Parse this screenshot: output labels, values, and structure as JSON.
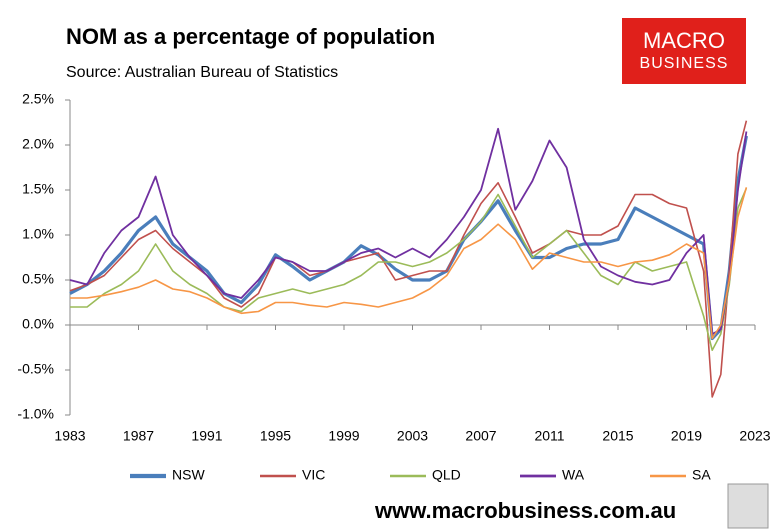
{
  "chart_data": {
    "type": "line",
    "title": "NOM as a percentage of population",
    "subtitle": "Source: Australian Bureau of Statistics",
    "logo": [
      "MACRO",
      "BUSINESS"
    ],
    "footer": "www.macrobusiness.com.au",
    "x": [
      1983,
      1984,
      1985,
      1986,
      1987,
      1988,
      1989,
      1990,
      1991,
      1992,
      1993,
      1994,
      1995,
      1996,
      1997,
      1998,
      1999,
      2000,
      2001,
      2002,
      2003,
      2004,
      2005,
      2006,
      2007,
      2008,
      2009,
      2010,
      2011,
      2012,
      2013,
      2014,
      2015,
      2016,
      2017,
      2018,
      2019,
      2020,
      2020.5,
      2021,
      2021.5,
      2022,
      2022.5
    ],
    "series": [
      {
        "name": "NSW",
        "color": "#4a7ebb",
        "width": 3.2,
        "values": [
          0.35,
          0.45,
          0.6,
          0.8,
          1.05,
          1.2,
          0.9,
          0.75,
          0.6,
          0.35,
          0.25,
          0.45,
          0.78,
          0.65,
          0.5,
          0.6,
          0.7,
          0.88,
          0.78,
          0.62,
          0.5,
          0.5,
          0.6,
          0.95,
          1.15,
          1.38,
          1.05,
          0.75,
          0.75,
          0.85,
          0.9,
          0.9,
          0.95,
          1.3,
          1.2,
          1.1,
          1.0,
          0.9,
          -0.15,
          -0.05,
          0.6,
          1.6,
          2.1
        ]
      },
      {
        "name": "VIC",
        "color": "#c0504d",
        "width": 1.6,
        "values": [
          0.38,
          0.45,
          0.55,
          0.75,
          0.95,
          1.05,
          0.85,
          0.7,
          0.55,
          0.3,
          0.2,
          0.35,
          0.75,
          0.7,
          0.55,
          0.6,
          0.7,
          0.75,
          0.8,
          0.5,
          0.55,
          0.6,
          0.6,
          1.0,
          1.35,
          1.58,
          1.2,
          0.8,
          0.9,
          1.05,
          1.0,
          1.0,
          1.1,
          1.45,
          1.45,
          1.35,
          1.3,
          0.6,
          -0.8,
          -0.55,
          0.6,
          1.9,
          2.27
        ]
      },
      {
        "name": "QLD",
        "color": "#9bbb59",
        "width": 1.6,
        "values": [
          0.2,
          0.2,
          0.35,
          0.45,
          0.6,
          0.9,
          0.6,
          0.45,
          0.35,
          0.2,
          0.15,
          0.3,
          0.35,
          0.4,
          0.35,
          0.4,
          0.45,
          0.55,
          0.7,
          0.7,
          0.65,
          0.7,
          0.8,
          0.95,
          1.15,
          1.45,
          1.1,
          0.75,
          0.9,
          1.05,
          0.8,
          0.55,
          0.45,
          0.7,
          0.6,
          0.65,
          0.7,
          0.1,
          -0.28,
          -0.1,
          0.45,
          1.3,
          1.52
        ]
      },
      {
        "name": "WA",
        "color": "#7030a0",
        "width": 1.8,
        "values": [
          0.5,
          0.45,
          0.8,
          1.05,
          1.2,
          1.65,
          1.0,
          0.75,
          0.55,
          0.35,
          0.3,
          0.5,
          0.75,
          0.7,
          0.6,
          0.6,
          0.7,
          0.8,
          0.85,
          0.75,
          0.85,
          0.75,
          0.95,
          1.2,
          1.5,
          2.18,
          1.28,
          1.6,
          2.05,
          1.75,
          0.95,
          0.65,
          0.55,
          0.48,
          0.45,
          0.5,
          0.8,
          1.0,
          -0.1,
          -0.05,
          0.5,
          1.5,
          2.15
        ]
      },
      {
        "name": "SA",
        "color": "#f79646",
        "width": 1.6,
        "values": [
          0.3,
          0.3,
          0.33,
          0.37,
          0.42,
          0.5,
          0.4,
          0.37,
          0.3,
          0.2,
          0.13,
          0.15,
          0.25,
          0.25,
          0.22,
          0.2,
          0.25,
          0.23,
          0.2,
          0.25,
          0.3,
          0.4,
          0.55,
          0.85,
          0.95,
          1.12,
          0.95,
          0.62,
          0.8,
          0.75,
          0.7,
          0.7,
          0.65,
          0.7,
          0.72,
          0.78,
          0.9,
          0.8,
          -0.15,
          0.0,
          0.5,
          1.2,
          1.53
        ]
      }
    ],
    "xlim": [
      1983,
      2023
    ],
    "xticks": [
      1983,
      1987,
      1991,
      1995,
      1999,
      2003,
      2007,
      2011,
      2015,
      2019,
      2023
    ],
    "ylim": [
      -1.0,
      2.5
    ],
    "yticks": [
      {
        "value": -1.0,
        "label": "-1.0%"
      },
      {
        "value": -0.5,
        "label": "-0.5%"
      },
      {
        "value": 0,
        "label": "0.0%"
      },
      {
        "value": 0.5,
        "label": "0.5%"
      },
      {
        "value": 1.0,
        "label": "1.0%"
      },
      {
        "value": 1.5,
        "label": "1.5%"
      },
      {
        "value": 2.0,
        "label": "2.0%"
      },
      {
        "value": 2.5,
        "label": "2.5%"
      }
    ],
    "legend": "bottom"
  }
}
